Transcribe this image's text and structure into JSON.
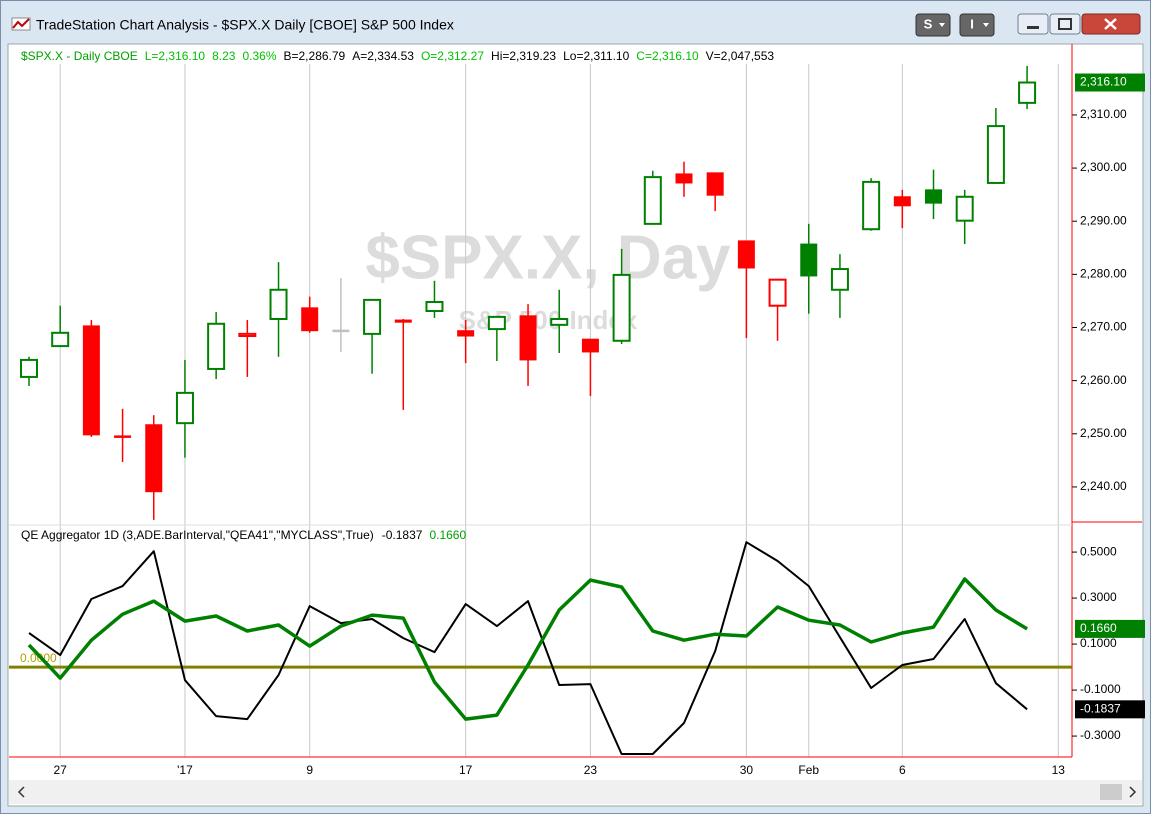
{
  "window": {
    "title": "TradeStation Chart Analysis - $SPX.X Daily [CBOE] S&P 500 Index"
  },
  "info": [
    {
      "text": "$SPX.X - Daily  CBOE",
      "color": "#00a000"
    },
    {
      "text": "L=2,316.10",
      "color": "#00c000"
    },
    {
      "text": "8.23",
      "color": "#00c000"
    },
    {
      "text": "0.36%",
      "color": "#00c000"
    },
    {
      "text": "B=2,286.79",
      "color": "#000000"
    },
    {
      "text": "A=2,334.53",
      "color": "#000000"
    },
    {
      "text": "O=2,312.27",
      "color": "#00c000"
    },
    {
      "text": "Hi=2,319.23",
      "color": "#000000"
    },
    {
      "text": "Lo=2,311.10",
      "color": "#000000"
    },
    {
      "text": "C=2,316.10",
      "color": "#00c000"
    },
    {
      "text": "V=2,047,553",
      "color": "#000000"
    }
  ],
  "chart_data": [
    {
      "type": "candlestick",
      "watermark": "$SPX.X, Day",
      "watermark_sub": "S&P 500 Index",
      "categories": [
        null,
        "27",
        null,
        null,
        null,
        "'17",
        null,
        null,
        null,
        "9",
        null,
        null,
        null,
        null,
        "17",
        null,
        null,
        null,
        "23",
        null,
        null,
        null,
        null,
        "30",
        null,
        "Feb",
        null,
        null,
        "6",
        null,
        null,
        null,
        null,
        "13"
      ],
      "open": [
        2260.7,
        2266.5,
        2270.3,
        2249.6,
        2251.7,
        2252.0,
        2262.2,
        2268.4,
        2271.6,
        2273.7,
        2269.5,
        2268.8,
        2271.4,
        2273.1,
        2269.4,
        2269.7,
        2272.2,
        2270.5,
        2267.8,
        2267.5,
        2289.5,
        2298.9,
        2299.1,
        2286.3,
        2274.1,
        2285.7,
        2277.1,
        2288.5,
        2294.6,
        2295.9,
        2290.1,
        2297.2,
        2312.27,
        null
      ],
      "high": [
        2264.5,
        2274.1,
        2271.4,
        2254.7,
        2253.5,
        2263.9,
        2272.9,
        2271.4,
        2282.3,
        2275.8,
        2279.3,
        2275.2,
        2271.6,
        2278.8,
        2271.4,
        2272.0,
        2274.4,
        2277.1,
        2267.8,
        2284.8,
        2299.5,
        2301.2,
        2299.1,
        2286.3,
        2279.0,
        2289.5,
        2283.8,
        2298.1,
        2295.9,
        2299.7,
        2295.9,
        2311.3,
        2319.23,
        null
      ],
      "low": [
        2259.0,
        2266.5,
        2249.4,
        2244.7,
        2233.8,
        2245.5,
        2260.3,
        2260.7,
        2264.5,
        2269.0,
        2265.4,
        2261.3,
        2254.5,
        2271.8,
        2263.3,
        2263.7,
        2259.0,
        2265.2,
        2257.1,
        2266.9,
        2289.5,
        2294.6,
        2291.9,
        2268.0,
        2267.5,
        2272.6,
        2271.8,
        2288.2,
        2288.7,
        2290.4,
        2285.7,
        2297.2,
        2311.1,
        null
      ],
      "close": [
        2263.9,
        2269.0,
        2249.8,
        2249.4,
        2239.1,
        2257.7,
        2270.7,
        2268.8,
        2277.1,
        2269.4,
        2269.4,
        2275.2,
        2271.0,
        2274.8,
        2268.4,
        2272.0,
        2263.9,
        2271.6,
        2265.4,
        2279.9,
        2298.3,
        2297.2,
        2294.9,
        2281.2,
        2279.0,
        2279.7,
        2281.0,
        2297.4,
        2292.9,
        2293.4,
        2294.6,
        2307.9,
        2316.1,
        null
      ],
      "last_label": "2,316.10",
      "up_color": "#008000",
      "down_color": "#ff0000",
      "flat_color": "#c0c0c0",
      "ylim": [
        2233.4,
        2324.1
      ],
      "yticks": [
        {
          "value": 2240,
          "label": "2,240.00"
        },
        {
          "value": 2250,
          "label": "2,250.00"
        },
        {
          "value": 2260,
          "label": "2,260.00"
        },
        {
          "value": 2270,
          "label": "2,270.00"
        },
        {
          "value": 2280,
          "label": "2,280.00"
        },
        {
          "value": 2290,
          "label": "2,290.00"
        },
        {
          "value": 2300,
          "label": "2,300.00"
        },
        {
          "value": 2310,
          "label": "2,310.00"
        }
      ],
      "grid": true
    },
    {
      "type": "line",
      "title": "QE Aggregator 1D (3,ADE.BarInterval,\"QEA41\",\"MYCLASS\",True)",
      "readouts": [
        {
          "text": "-0.1837",
          "color": "#000000"
        },
        {
          "text": "0.1660",
          "color": "#00a000"
        }
      ],
      "series": [
        {
          "color": "#000000",
          "width": 2,
          "last_label": "-0.1837",
          "values": [
            0.148,
            0.052,
            0.296,
            0.352,
            0.504,
            -0.057,
            -0.213,
            -0.226,
            -0.035,
            0.265,
            0.191,
            0.209,
            0.126,
            0.065,
            0.274,
            0.178,
            0.287,
            -0.078,
            -0.074,
            -0.378,
            -0.378,
            -0.243,
            0.07,
            0.543,
            0.461,
            0.352,
            0.13,
            -0.091,
            0.009,
            0.035,
            0.209,
            -0.07,
            -0.1837,
            null
          ]
        },
        {
          "color": "#008000",
          "width": 3.5,
          "last_label": "0.1660",
          "values": [
            0.096,
            -0.048,
            0.117,
            0.23,
            0.287,
            0.2,
            0.222,
            0.157,
            0.183,
            0.091,
            0.178,
            0.226,
            0.213,
            -0.065,
            -0.226,
            -0.209,
            0.009,
            0.248,
            0.378,
            0.348,
            0.157,
            0.117,
            0.143,
            0.135,
            0.261,
            0.204,
            0.183,
            0.109,
            0.148,
            0.174,
            0.383,
            0.248,
            0.166,
            null
          ]
        }
      ],
      "zero_line": {
        "value": 0,
        "label": "0.0000",
        "color": "#808000"
      },
      "ylim": [
        -0.391,
        0.596
      ],
      "yticks": [
        {
          "value": 0.5,
          "label": "0.5000"
        },
        {
          "value": 0.3,
          "label": "0.3000"
        },
        {
          "value": 0.1,
          "label": "0.1000"
        },
        {
          "value": -0.1,
          "label": "-0.1000"
        },
        {
          "value": -0.3,
          "label": "-0.3000"
        }
      ]
    }
  ]
}
